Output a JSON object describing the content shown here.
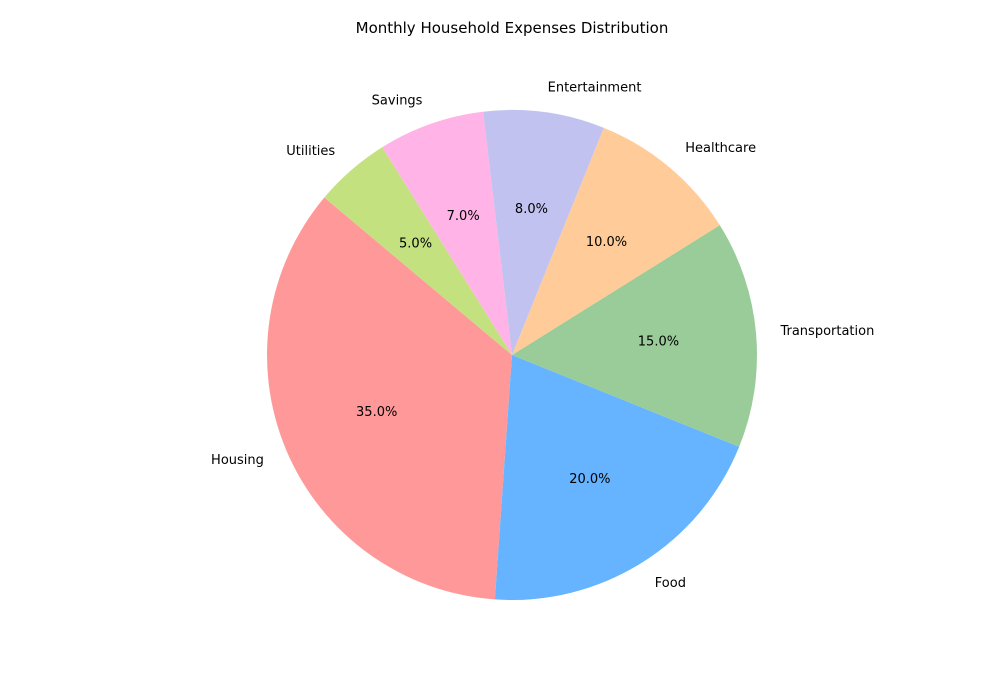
{
  "chart_data": {
    "type": "pie",
    "title": "Monthly Household Expenses Distribution",
    "start_angle_deg": 140,
    "direction": "counterclockwise",
    "label_format": "{pct}%",
    "slices": [
      {
        "label": "Housing",
        "value": 35,
        "pct_text": "35.0%",
        "color": "#ff9999"
      },
      {
        "label": "Food",
        "value": 20,
        "pct_text": "20.0%",
        "color": "#66b3ff"
      },
      {
        "label": "Transportation",
        "value": 15,
        "pct_text": "15.0%",
        "color": "#99cc99"
      },
      {
        "label": "Healthcare",
        "value": 10,
        "pct_text": "10.0%",
        "color": "#ffcc99"
      },
      {
        "label": "Entertainment",
        "value": 8,
        "pct_text": "8.0%",
        "color": "#c2c2f0"
      },
      {
        "label": "Savings",
        "value": 7,
        "pct_text": "7.0%",
        "color": "#ffb3e6"
      },
      {
        "label": "Utilities",
        "value": 5,
        "pct_text": "5.0%",
        "color": "#c4e17f"
      }
    ]
  }
}
